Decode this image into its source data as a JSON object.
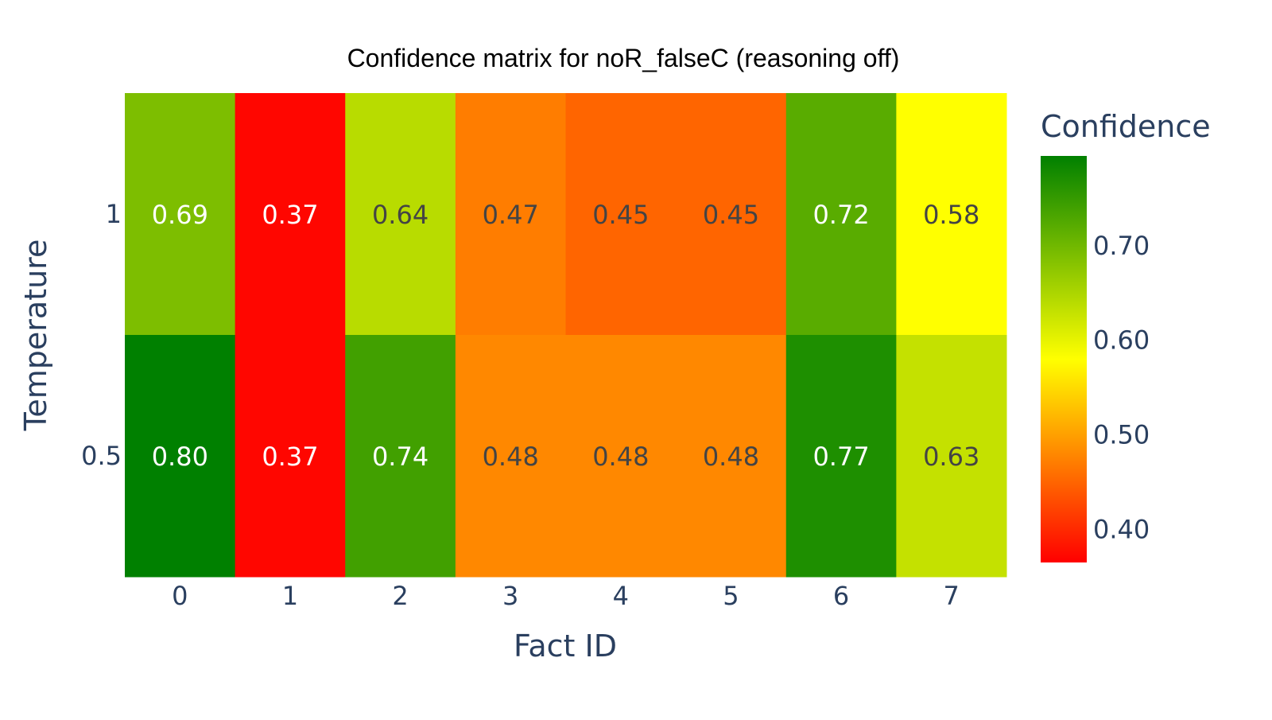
{
  "chart_data": {
    "type": "heatmap",
    "title": "Confidence matrix for noR_falseC (reasoning off)",
    "xlabel": "Fact ID",
    "ylabel": "Temperature",
    "x_categories": [
      "0",
      "1",
      "2",
      "3",
      "4",
      "5",
      "6",
      "7"
    ],
    "y_categories": [
      "1",
      "0.5"
    ],
    "z": [
      [
        0.69,
        0.37,
        0.64,
        0.47,
        0.45,
        0.45,
        0.72,
        0.58
      ],
      [
        0.8,
        0.37,
        0.74,
        0.48,
        0.48,
        0.48,
        0.77,
        0.63
      ]
    ],
    "cell_labels": [
      [
        "0.69",
        "0.37",
        "0.64",
        "0.47",
        "0.45",
        "0.45",
        "0.72",
        "0.58"
      ],
      [
        "0.80",
        "0.37",
        "0.74",
        "0.48",
        "0.48",
        "0.48",
        "0.77",
        "0.63"
      ]
    ],
    "colorbar": {
      "title": "Confidence",
      "range": [
        0.365,
        0.795
      ],
      "ticks": [
        0.4,
        0.5,
        0.6,
        0.7
      ],
      "tick_labels": [
        "0.40",
        "0.50",
        "0.60",
        "0.70"
      ]
    },
    "colorscale": [
      [
        0.0,
        "#ff0000"
      ],
      [
        0.5,
        "#ffff00"
      ],
      [
        1.0,
        "#008000"
      ]
    ],
    "colors": {
      "text_dark": "#444444",
      "text_light": "#ffffff",
      "axis_text": "#2a3f5f"
    }
  }
}
